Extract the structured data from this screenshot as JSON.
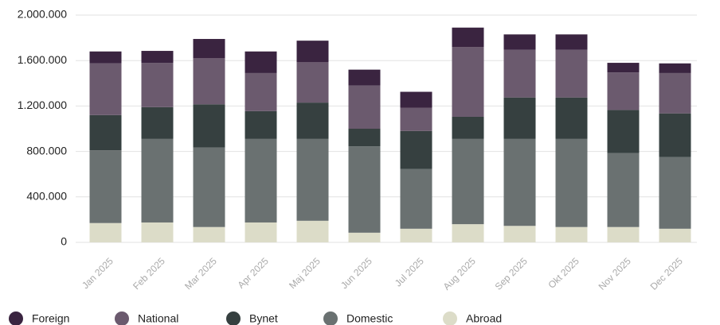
{
  "chart_data": {
    "type": "stacked_bar",
    "categories": [
      "Jan 2025",
      "Feb 2025",
      "Mar 2025",
      "Apr 2025",
      "Maj 2025",
      "Jun 2025",
      "Jul 2025",
      "Aug 2025",
      "Sep 2025",
      "Okt 2025",
      "Nov 2025",
      "Dec 2025"
    ],
    "series": [
      {
        "name": "Foreign",
        "color": "#3a2440",
        "values": [
          105000,
          105000,
          170000,
          190000,
          190000,
          140000,
          140000,
          170000,
          135000,
          135000,
          85000,
          85000
        ]
      },
      {
        "name": "National",
        "color": "#6b5a6e",
        "values": [
          455000,
          390000,
          405000,
          335000,
          355000,
          380000,
          205000,
          615000,
          420000,
          420000,
          330000,
          355000
        ]
      },
      {
        "name": "Bynet",
        "color": "#364040",
        "values": [
          310000,
          280000,
          380000,
          245000,
          320000,
          155000,
          335000,
          195000,
          365000,
          365000,
          380000,
          385000
        ]
      },
      {
        "name": "Domestic",
        "color": "#6a7171",
        "values": [
          640000,
          735000,
          700000,
          735000,
          720000,
          760000,
          525000,
          750000,
          765000,
          775000,
          650000,
          630000
        ]
      },
      {
        "name": "Abroad",
        "color": "#dcdcc8",
        "values": [
          170000,
          175000,
          135000,
          175000,
          190000,
          85000,
          120000,
          160000,
          145000,
          135000,
          135000,
          120000
        ]
      }
    ],
    "ylim": [
      0,
      2000000
    ],
    "yticks": [
      0,
      {
        "value": 400000,
        "label": "400.000"
      },
      {
        "value": 800000,
        "label": "800.000"
      },
      {
        "value": 1200000,
        "label": "1.200.000"
      },
      {
        "value": 1600000,
        "label": "1.600.000"
      },
      {
        "value": 2000000,
        "label": "2.000.000"
      }
    ],
    "grid": true,
    "legend": "bottom"
  }
}
